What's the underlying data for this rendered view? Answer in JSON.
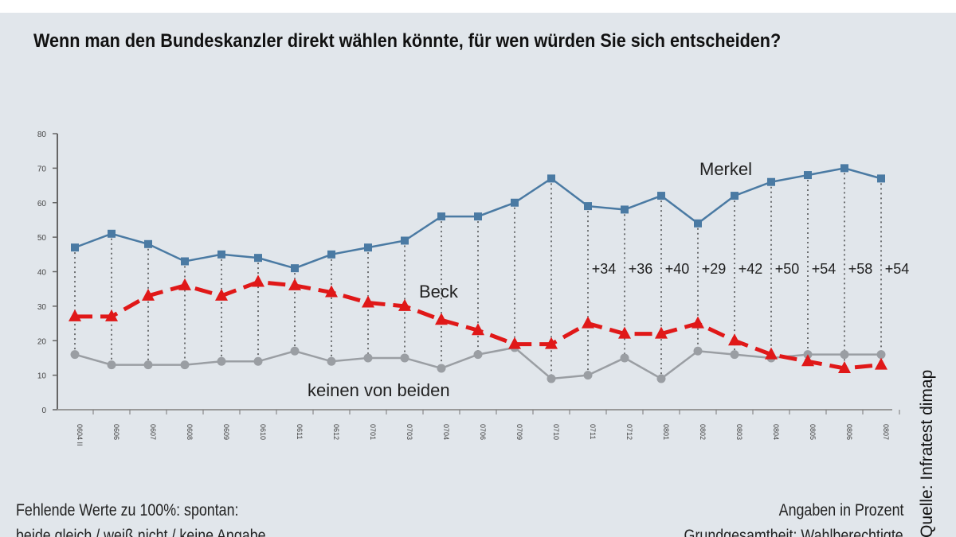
{
  "title": "Wenn man den Bundeskanzler direkt wählen könnte, für wen würden Sie sich entscheiden?",
  "footer": {
    "left_line1": "Fehlende Werte zu 100%: spontan:",
    "left_line2": "beide gleich / weiß nicht / keine Angabe",
    "right_line1": "Angaben in Prozent",
    "right_line2": "Grundgesamtheit: Wahlberechtigte",
    "source": "Quelle: Infratest dimap"
  },
  "chart_data": {
    "type": "line",
    "title": "Wenn man den Bundeskanzler direkt wählen könnte, für wen würden Sie sich entscheiden?",
    "xlabel": "",
    "ylabel": "",
    "ylim": [
      0,
      80
    ],
    "yticks": [
      "0",
      "10",
      "20",
      "30",
      "40",
      "50",
      "60",
      "70",
      "80"
    ],
    "categories": [
      "0604 II",
      "0606",
      "0607",
      "0608",
      "0609",
      "0610",
      "0611",
      "0612",
      "0701",
      "0703",
      "0704",
      "0706",
      "0709",
      "0710",
      "0711",
      "0712",
      "0801",
      "0802",
      "0803",
      "0804",
      "0805",
      "0806",
      "0807"
    ],
    "series": [
      {
        "name": "Merkel",
        "color": "#4a7aa3",
        "style": "solid",
        "marker": "square",
        "values": [
          47,
          51,
          48,
          43,
          45,
          44,
          41,
          45,
          47,
          49,
          56,
          56,
          60,
          67,
          59,
          58,
          62,
          54,
          62,
          66,
          68,
          70,
          67
        ]
      },
      {
        "name": "Beck",
        "color": "#e01818",
        "style": "dashed",
        "marker": "triangle",
        "values": [
          27,
          27,
          33,
          36,
          33,
          37,
          36,
          34,
          31,
          30,
          26,
          23,
          19,
          19,
          25,
          22,
          22,
          25,
          20,
          16,
          14,
          12,
          13
        ]
      },
      {
        "name": "keinen von beiden",
        "color": "#9a9ea3",
        "style": "solid",
        "marker": "circle",
        "values": [
          16,
          13,
          13,
          13,
          14,
          14,
          17,
          14,
          15,
          15,
          12,
          16,
          18,
          9,
          10,
          15,
          9,
          17,
          16,
          15,
          16,
          16,
          16
        ]
      }
    ],
    "annotations": [
      {
        "category": "0711",
        "text": "+34"
      },
      {
        "category": "0712",
        "text": "+36"
      },
      {
        "category": "0801",
        "text": "+40"
      },
      {
        "category": "0802",
        "text": "+29"
      },
      {
        "category": "0803",
        "text": "+42"
      },
      {
        "category": "0804",
        "text": "+50"
      },
      {
        "category": "0805",
        "text": "+54"
      },
      {
        "category": "0806",
        "text": "+58"
      },
      {
        "category": "0807",
        "text": "+54"
      }
    ],
    "legend": "inline labels"
  }
}
